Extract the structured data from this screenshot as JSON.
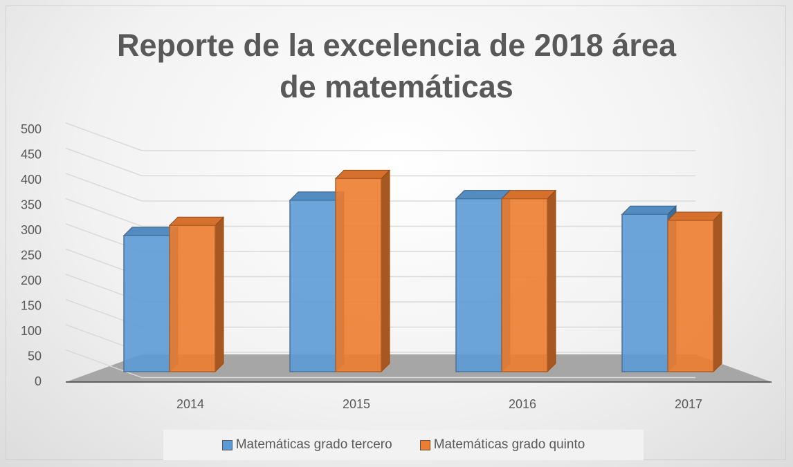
{
  "chart_data": {
    "type": "bar3d",
    "title": "Reporte de la excelencia de 2018 área de matemáticas",
    "categories": [
      "2014",
      "2015",
      "2016",
      "2017"
    ],
    "series": [
      {
        "name": "Matemáticas grado tercero",
        "color": "#5b9bd5",
        "values": [
          270,
          340,
          343,
          312
        ]
      },
      {
        "name": "Matemáticas grado quinto",
        "color": "#ed7d31",
        "values": [
          290,
          383,
          343,
          300
        ]
      }
    ],
    "ylim": [
      0,
      500
    ],
    "yticks": [
      0,
      50,
      100,
      150,
      200,
      250,
      300,
      350,
      400,
      450,
      500
    ],
    "grid": true,
    "legend": "bottom"
  }
}
